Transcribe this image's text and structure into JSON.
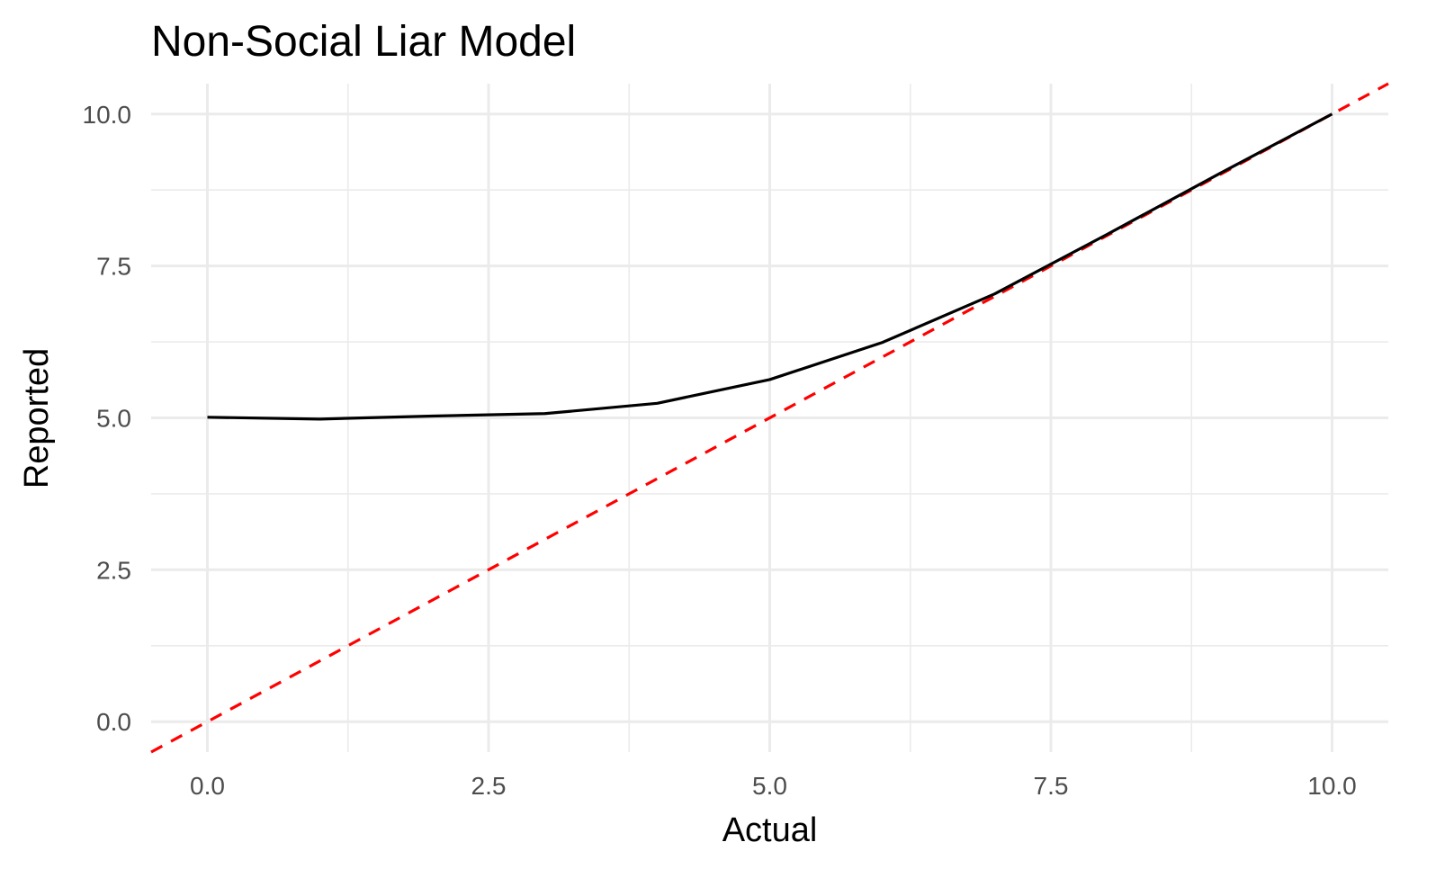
{
  "chart_data": {
    "type": "line",
    "title": "Non-Social Liar Model",
    "xlabel": "Actual",
    "ylabel": "Reported",
    "xlim": [
      -0.5,
      10.5
    ],
    "ylim": [
      -0.5,
      10.5
    ],
    "x_ticks": [
      "0.0",
      "2.5",
      "5.0",
      "7.5",
      "10.0"
    ],
    "y_ticks": [
      "0.0",
      "2.5",
      "5.0",
      "7.5",
      "10.0"
    ],
    "grid": true,
    "legend": "none",
    "series": [
      {
        "color": "#000000",
        "style": "solid",
        "x": [
          0,
          1,
          2,
          3,
          4,
          5,
          6,
          7,
          8,
          9,
          10
        ],
        "y": [
          5.01,
          4.98,
          5.03,
          5.07,
          5.24,
          5.63,
          6.24,
          7.04,
          8.02,
          9.02,
          10.0
        ]
      },
      {
        "color": "#ff0000",
        "style": "dashed",
        "x": [
          -0.5,
          10.5
        ],
        "y": [
          -0.5,
          10.5
        ]
      }
    ]
  }
}
